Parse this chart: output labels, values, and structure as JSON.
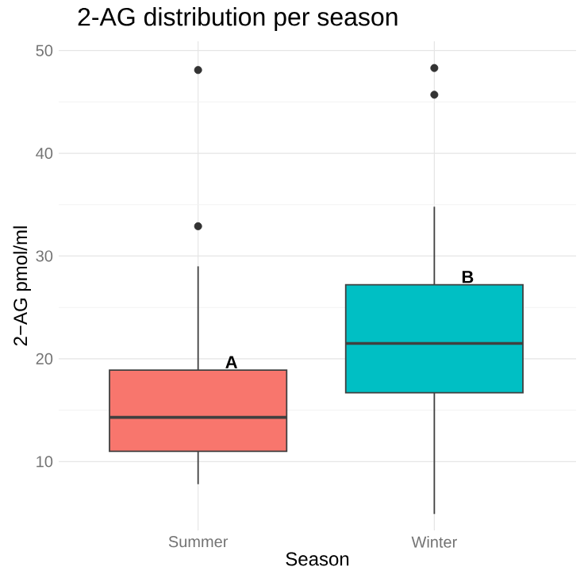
{
  "chart_data": {
    "type": "box",
    "title": "2-AG distribution per season",
    "xlabel": "Season",
    "ylabel": "2−AG pmol/ml",
    "categories": [
      "Summer",
      "Winter"
    ],
    "colors": [
      "#f8766d",
      "#00bfc4"
    ],
    "boxes": [
      {
        "low": 7.8,
        "q1": 11.0,
        "median": 14.3,
        "q3": 18.9,
        "high": 29.0,
        "outliers": [
          48.1,
          32.9
        ]
      },
      {
        "low": 4.9,
        "q1": 16.7,
        "median": 21.5,
        "q3": 27.2,
        "high": 34.8,
        "outliers": [
          48.3,
          45.7
        ]
      }
    ],
    "ylim": [
      3.3,
      50.9
    ],
    "yticks": [
      10,
      20,
      30,
      40,
      50
    ],
    "grid": true,
    "annotations": [
      "A",
      "B"
    ]
  }
}
